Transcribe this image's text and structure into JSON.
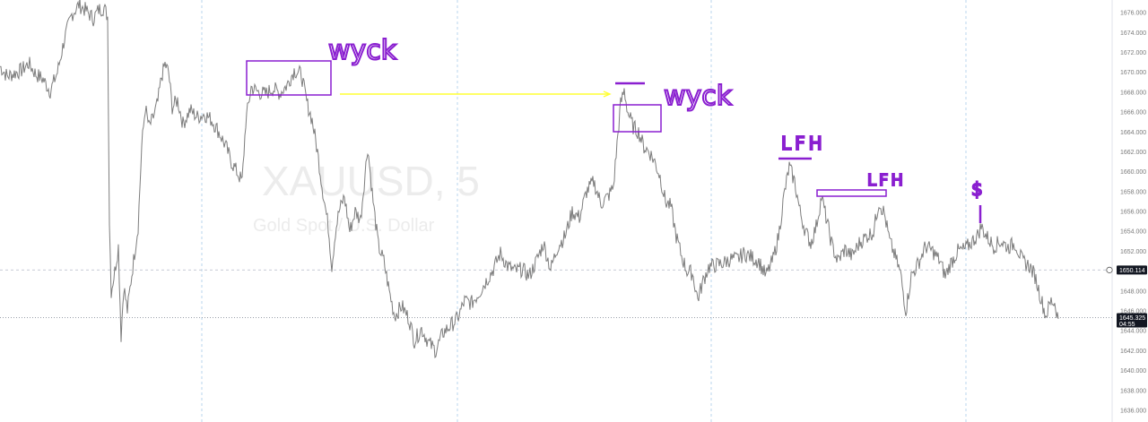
{
  "chart_data": {
    "type": "line",
    "symbol": "XAUUSD, 5",
    "description": "Gold Spot / U.S. Dollar",
    "ylim": [
      1636,
      1677
    ],
    "y_ticks": [
      "1676.000",
      "1674.000",
      "1672.000",
      "1670.000",
      "1668.000",
      "1666.000",
      "1664.000",
      "1662.000",
      "1660.000",
      "1658.000",
      "1656.000",
      "1654.000",
      "1652.000",
      "1650.000",
      "1648.000",
      "1646.000",
      "1644.000",
      "1642.000",
      "1640.000",
      "1638.000",
      "1636.000"
    ],
    "price_tags": [
      {
        "label": "1650.114",
        "value": 1650.114
      },
      {
        "label": "1645.325",
        "sub": "04:55",
        "value": 1645.325
      }
    ],
    "colors": {
      "price": "#7d7d7d",
      "annotation": "#8a1fd0",
      "arrow": "#ffff33",
      "grid": "#b9d4ee",
      "tag": "#131722"
    },
    "price_points": [
      [
        0,
        1670.6
      ],
      [
        8,
        1669.6
      ],
      [
        16,
        1669.9
      ],
      [
        24,
        1670.2
      ],
      [
        32,
        1670.9
      ],
      [
        40,
        1669.8
      ],
      [
        48,
        1669.3
      ],
      [
        56,
        1668.1
      ],
      [
        64,
        1670.0
      ],
      [
        72,
        1673.4
      ],
      [
        80,
        1675.8
      ],
      [
        88,
        1676.8
      ],
      [
        96,
        1676.2
      ],
      [
        104,
        1675.4
      ],
      [
        110,
        1676.3
      ],
      [
        116,
        1676.5
      ],
      [
        120,
        1675.6
      ],
      [
        122,
        1655.0
      ],
      [
        124,
        1648.0
      ],
      [
        128,
        1650.0
      ],
      [
        132,
        1652.5
      ],
      [
        135,
        1643.5
      ],
      [
        138,
        1648.5
      ],
      [
        142,
        1646.0
      ],
      [
        146,
        1649.0
      ],
      [
        150,
        1651.8
      ],
      [
        154,
        1654.5
      ],
      [
        158,
        1662.5
      ],
      [
        162,
        1666.5
      ],
      [
        166,
        1664.5
      ],
      [
        170,
        1665.2
      ],
      [
        176,
        1667.0
      ],
      [
        180,
        1669.5
      ],
      [
        184,
        1670.8
      ],
      [
        188,
        1670.0
      ],
      [
        192,
        1666.5
      ],
      [
        198,
        1667.2
      ],
      [
        204,
        1664.8
      ],
      [
        212,
        1666.2
      ],
      [
        220,
        1665.5
      ],
      [
        228,
        1665.8
      ],
      [
        236,
        1665.2
      ],
      [
        244,
        1664.0
      ],
      [
        252,
        1662.5
      ],
      [
        258,
        1661.0
      ],
      [
        264,
        1660.0
      ],
      [
        270,
        1659.0
      ],
      [
        274,
        1665.0
      ],
      [
        280,
        1668.5
      ],
      [
        288,
        1668.0
      ],
      [
        296,
        1667.8
      ],
      [
        304,
        1668.4
      ],
      [
        312,
        1667.9
      ],
      [
        320,
        1668.7
      ],
      [
        328,
        1670.2
      ],
      [
        336,
        1669.8
      ],
      [
        342,
        1667.0
      ],
      [
        348,
        1665.2
      ],
      [
        354,
        1662.0
      ],
      [
        360,
        1658.0
      ],
      [
        366,
        1654.5
      ],
      [
        370,
        1650.5
      ],
      [
        374,
        1654.0
      ],
      [
        378,
        1656.0
      ],
      [
        384,
        1657.5
      ],
      [
        390,
        1654.0
      ],
      [
        396,
        1656.0
      ],
      [
        402,
        1655.2
      ],
      [
        410,
        1662.5
      ],
      [
        416,
        1657.0
      ],
      [
        422,
        1652.5
      ],
      [
        428,
        1651.0
      ],
      [
        434,
        1648.0
      ],
      [
        440,
        1645.5
      ],
      [
        448,
        1646.5
      ],
      [
        456,
        1645.2
      ],
      [
        462,
        1643.0
      ],
      [
        470,
        1644.2
      ],
      [
        478,
        1642.8
      ],
      [
        486,
        1642.0
      ],
      [
        494,
        1643.8
      ],
      [
        502,
        1644.5
      ],
      [
        510,
        1645.2
      ],
      [
        518,
        1647.0
      ],
      [
        526,
        1646.8
      ],
      [
        534,
        1647.8
      ],
      [
        542,
        1649.0
      ],
      [
        550,
        1650.2
      ],
      [
        558,
        1651.8
      ],
      [
        566,
        1650.5
      ],
      [
        574,
        1650.0
      ],
      [
        582,
        1650.2
      ],
      [
        590,
        1649.5
      ],
      [
        598,
        1651.0
      ],
      [
        606,
        1652.8
      ],
      [
        614,
        1650.2
      ],
      [
        622,
        1652.5
      ],
      [
        630,
        1653.5
      ],
      [
        638,
        1656.0
      ],
      [
        646,
        1655.4
      ],
      [
        654,
        1658.0
      ],
      [
        662,
        1659.0
      ],
      [
        670,
        1656.8
      ],
      [
        678,
        1657.5
      ],
      [
        684,
        1658.5
      ],
      [
        688,
        1662.8
      ],
      [
        692,
        1666.8
      ],
      [
        696,
        1668.2
      ],
      [
        700,
        1666.0
      ],
      [
        706,
        1664.5
      ],
      [
        712,
        1664.0
      ],
      [
        718,
        1662.5
      ],
      [
        724,
        1662.0
      ],
      [
        730,
        1661.0
      ],
      [
        736,
        1659.5
      ],
      [
        742,
        1657.0
      ],
      [
        748,
        1656.5
      ],
      [
        754,
        1653.5
      ],
      [
        760,
        1651.5
      ],
      [
        766,
        1650.0
      ],
      [
        772,
        1649.8
      ],
      [
        778,
        1647.2
      ],
      [
        784,
        1649.0
      ],
      [
        790,
        1650.4
      ],
      [
        798,
        1650.6
      ],
      [
        806,
        1650.8
      ],
      [
        814,
        1651.2
      ],
      [
        822,
        1651.2
      ],
      [
        830,
        1651.8
      ],
      [
        838,
        1651.4
      ],
      [
        846,
        1651.0
      ],
      [
        854,
        1649.5
      ],
      [
        862,
        1651.2
      ],
      [
        868,
        1653.5
      ],
      [
        874,
        1657.5
      ],
      [
        880,
        1660.5
      ],
      [
        886,
        1659.0
      ],
      [
        892,
        1656.0
      ],
      [
        898,
        1654.0
      ],
      [
        904,
        1652.8
      ],
      [
        910,
        1654.5
      ],
      [
        916,
        1657.5
      ],
      [
        922,
        1655.0
      ],
      [
        928,
        1652.5
      ],
      [
        934,
        1651.0
      ],
      [
        942,
        1652.2
      ],
      [
        950,
        1651.5
      ],
      [
        958,
        1652.8
      ],
      [
        966,
        1653.5
      ],
      [
        974,
        1654.0
      ],
      [
        980,
        1657.0
      ],
      [
        986,
        1655.8
      ],
      [
        992,
        1653.0
      ],
      [
        998,
        1651.5
      ],
      [
        1004,
        1649.8
      ],
      [
        1010,
        1646.0
      ],
      [
        1016,
        1649.5
      ],
      [
        1024,
        1650.8
      ],
      [
        1032,
        1652.5
      ],
      [
        1040,
        1652.0
      ],
      [
        1048,
        1651.0
      ],
      [
        1054,
        1649.5
      ],
      [
        1060,
        1650.8
      ],
      [
        1068,
        1652.0
      ],
      [
        1076,
        1652.2
      ],
      [
        1084,
        1653.0
      ],
      [
        1090,
        1653.6
      ],
      [
        1094,
        1654.5
      ],
      [
        1100,
        1653.5
      ],
      [
        1108,
        1652.5
      ],
      [
        1116,
        1653.0
      ],
      [
        1124,
        1652.4
      ],
      [
        1132,
        1652.8
      ],
      [
        1140,
        1651.0
      ],
      [
        1148,
        1650.5
      ],
      [
        1154,
        1649.5
      ],
      [
        1160,
        1647.5
      ],
      [
        1166,
        1645.5
      ],
      [
        1172,
        1647.0
      ],
      [
        1176,
        1646.8
      ],
      [
        1180,
        1645.2
      ]
    ],
    "annotations": [
      {
        "type": "text",
        "label": "wyck"
      },
      {
        "type": "text",
        "label": "wyck"
      },
      {
        "type": "text",
        "label": "LFH"
      },
      {
        "type": "text",
        "label": "LFH"
      },
      {
        "type": "text",
        "label": "$"
      }
    ]
  }
}
